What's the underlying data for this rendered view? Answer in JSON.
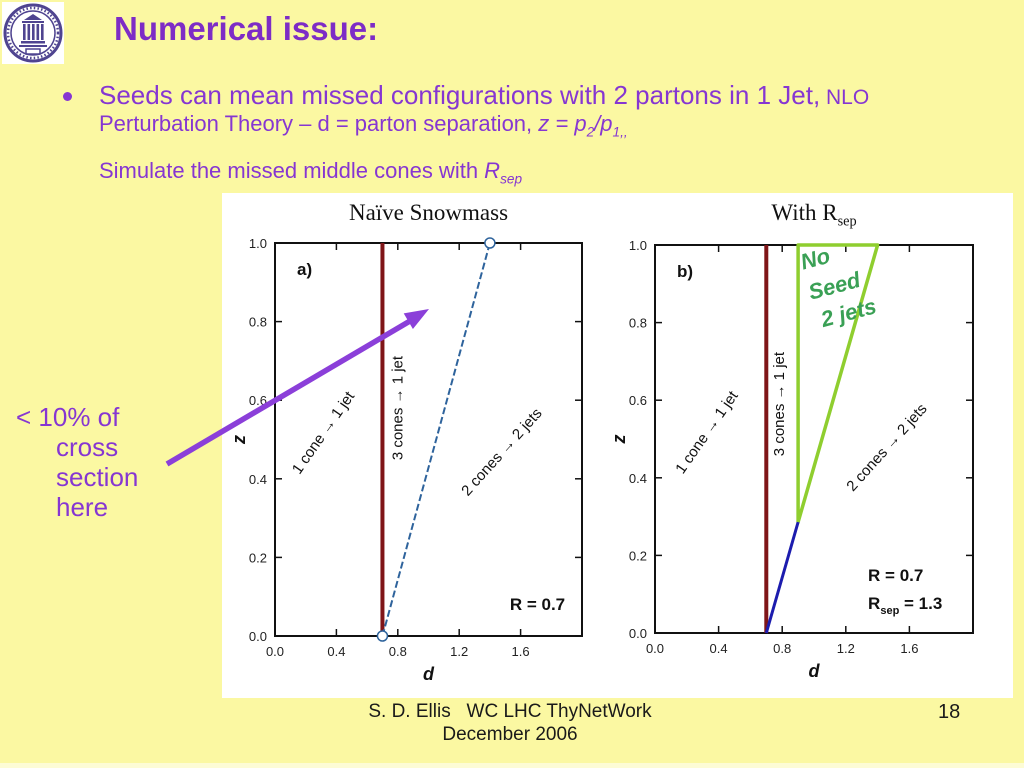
{
  "slide": {
    "background": "#fbf8a2",
    "title": "Numerical issue:",
    "title_color": "#7d2cc6",
    "body_color": "#8636d2"
  },
  "logo": {
    "alt": "university-of-washington-seal",
    "color": "#4f4490"
  },
  "bullet": {
    "l1a": "Seeds can mean missed configurations with 2 partons in 1 Jet,",
    "l1b": " NLO",
    "l2a": "Perturbation Theory – d = parton separation, ",
    "l2_z": "z",
    "l2_eq": " = ",
    "l2_p2": "p",
    "l2_p2sub": "2",
    "l2_slash": "/",
    "l2_p1": "p",
    "l2_p1sub": "1,,",
    "l3a": "Simulate the missed middle cones with ",
    "l3_R": "R",
    "l3_Rsub": "sep"
  },
  "annotation": {
    "lines": [
      "< 10% of",
      "cross",
      "section",
      "here"
    ],
    "arrow_color": "#8b3fd9"
  },
  "footer": {
    "line1": "S. D. Ellis   WC LHC ThyNetWork",
    "line2": "December 2006",
    "page": "18"
  },
  "chart_data": {
    "charts": [
      {
        "id": "a",
        "type": "line",
        "panel": "a)",
        "title": "Naïve Snowmass",
        "xlabel": "d",
        "ylabel": "z",
        "xlim": [
          0,
          2.0
        ],
        "ylim": [
          0,
          1.0
        ],
        "xticks": [
          {
            "v": 0,
            "l": "0.0"
          },
          {
            "v": 0.4,
            "l": "0.4"
          },
          {
            "v": 0.8,
            "l": "0.8"
          },
          {
            "v": 1.2,
            "l": "1.2"
          },
          {
            "v": 1.6,
            "l": "1.6"
          }
        ],
        "yticks": [
          {
            "v": 0,
            "l": "0.0"
          },
          {
            "v": 0.2,
            "l": "0.2"
          },
          {
            "v": 0.4,
            "l": "0.4"
          },
          {
            "v": 0.6,
            "l": "0.6"
          },
          {
            "v": 0.8,
            "l": "0.8"
          },
          {
            "v": 1.0,
            "l": "1.0"
          }
        ],
        "lines": [
          {
            "name": "seed-threshold-line-d-equals-R",
            "color": "#7f1518",
            "width": 4,
            "points": [
              [
                0.7,
                0
              ],
              [
                0.7,
                1.0
              ]
            ]
          },
          {
            "name": "merge-boundary-line",
            "color": "#2e639c",
            "width": 2,
            "dash": "7 3",
            "points": [
              [
                0.7,
                0
              ],
              [
                1.4,
                1.0
              ]
            ],
            "endmarkers": true
          }
        ],
        "labels": [
          {
            "text": "1 cone  → 1 jet",
            "x": 0.34,
            "y": 0.51,
            "angle": -55,
            "cls": "region"
          },
          {
            "text": "3 cones  → 1 jet",
            "x": 0.83,
            "y": 0.58,
            "angle": -90,
            "cls": "region"
          },
          {
            "text": "2 cones  → 2 jets",
            "x": 1.5,
            "y": 0.46,
            "angle": -48,
            "cls": "region"
          },
          {
            "text": "R = 0.7",
            "x": 1.53,
            "y": 0.066,
            "angle": 0,
            "cls": "rvalue",
            "anchor": "start"
          }
        ]
      },
      {
        "id": "b",
        "type": "line",
        "panel": "b)",
        "title": "With R_sep",
        "title_main": "With R",
        "title_sub": "sep",
        "xlabel": "d",
        "ylabel": "z",
        "xlim": [
          0,
          2.0
        ],
        "ylim": [
          0,
          1.0
        ],
        "xticks": [
          {
            "v": 0,
            "l": "0.0"
          },
          {
            "v": 0.4,
            "l": "0.4"
          },
          {
            "v": 0.8,
            "l": "0.8"
          },
          {
            "v": 1.2,
            "l": "1.2"
          },
          {
            "v": 1.6,
            "l": "1.6"
          }
        ],
        "yticks": [
          {
            "v": 0,
            "l": "0.0"
          },
          {
            "v": 0.2,
            "l": "0.2"
          },
          {
            "v": 0.4,
            "l": "0.4"
          },
          {
            "v": 0.6,
            "l": "0.6"
          },
          {
            "v": 0.8,
            "l": "0.8"
          },
          {
            "v": 1.0,
            "l": "1.0"
          }
        ],
        "region": {
          "name": "no-seed-2-jets-region",
          "color": "#8fce2f",
          "width": 3.5,
          "points": [
            [
              0.9,
              1.0
            ],
            [
              1.4,
              1.0
            ],
            [
              0.9,
              0.2857
            ]
          ]
        },
        "lines": [
          {
            "name": "seed-threshold-line-d-equals-R",
            "color": "#7f1518",
            "width": 4,
            "points": [
              [
                0.7,
                0
              ],
              [
                0.7,
                1.0
              ]
            ]
          },
          {
            "name": "merge-boundary-line-low-z",
            "color": "#1c1cae",
            "width": 3,
            "points": [
              [
                0.7,
                0
              ],
              [
                0.9,
                0.2857
              ]
            ]
          }
        ],
        "labels": [
          {
            "text": "1 cone  → 1 jet",
            "x": 0.35,
            "y": 0.51,
            "angle": -55,
            "cls": "region"
          },
          {
            "text": "3 cones  → 1 jet",
            "x": 0.81,
            "y": 0.59,
            "angle": -90,
            "cls": "region"
          },
          {
            "text": "2 cones  → 2 jets",
            "x": 1.48,
            "y": 0.47,
            "angle": -48,
            "cls": "region"
          },
          {
            "text": "No",
            "x": 1.02,
            "y": 0.946,
            "angle": -15,
            "cls": "noseed"
          },
          {
            "text": "Seed",
            "x": 1.14,
            "y": 0.876,
            "angle": -15,
            "cls": "noseed"
          },
          {
            "text": "2 jets",
            "x": 1.23,
            "y": 0.807,
            "angle": -15,
            "cls": "noseed"
          },
          {
            "text": "R = 0.7",
            "x": 1.34,
            "y": 0.134,
            "angle": 0,
            "cls": "rvalue",
            "anchor": "start"
          },
          {
            "parts": [
              {
                "t": "R"
              },
              {
                "t": "sep",
                "sub": true
              },
              {
                "t": " = 1.3"
              }
            ],
            "x": 1.34,
            "y": 0.062,
            "angle": 0,
            "cls": "rvalue",
            "anchor": "start"
          }
        ]
      }
    ]
  }
}
